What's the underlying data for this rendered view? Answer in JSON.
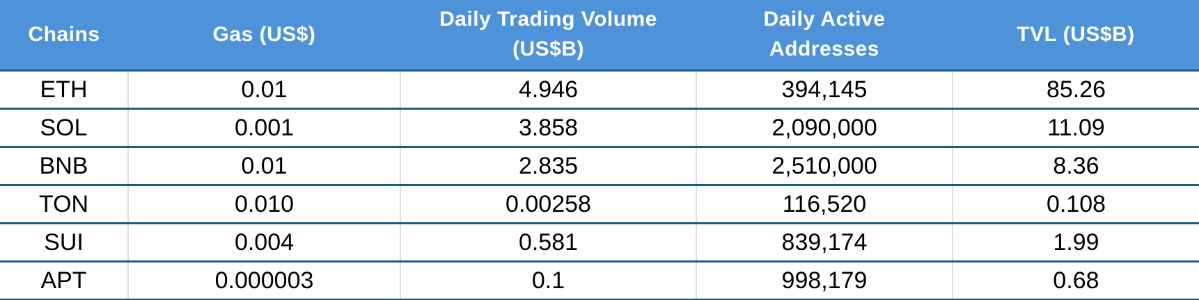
{
  "chart_data": {
    "type": "table",
    "title": "",
    "columns": [
      "Chains",
      "Gas (US$)",
      "Daily Trading Volume\n(US$B)",
      "Daily Active\nAddresses",
      "TVL (US$B)"
    ],
    "rows": [
      [
        "ETH",
        "0.01",
        "4.946",
        "394,145",
        "85.26"
      ],
      [
        "SOL",
        "0.001",
        "3.858",
        "2,090,000",
        "11.09"
      ],
      [
        "BNB",
        "0.01",
        "2.835",
        "2,510,000",
        "8.36"
      ],
      [
        "TON",
        "0.010",
        "0.00258",
        "116,520",
        "0.108"
      ],
      [
        "SUI",
        "0.004",
        "0.581",
        "839,174",
        "1.99"
      ],
      [
        "APT",
        "0.000003",
        "0.1",
        "998,179",
        "0.68"
      ]
    ],
    "colors": {
      "header_background": "#4E92D9",
      "header_text": "#FFFFFF",
      "row_divider": "#195E80",
      "column_divider": "#DCDCDC",
      "body_text": "#000000",
      "body_background": "#FFFFFF"
    },
    "layout": {
      "grid": "horizontal dividers dark steel-blue, light gray vertical dividers in body only",
      "alignment": "all cells centered"
    }
  }
}
